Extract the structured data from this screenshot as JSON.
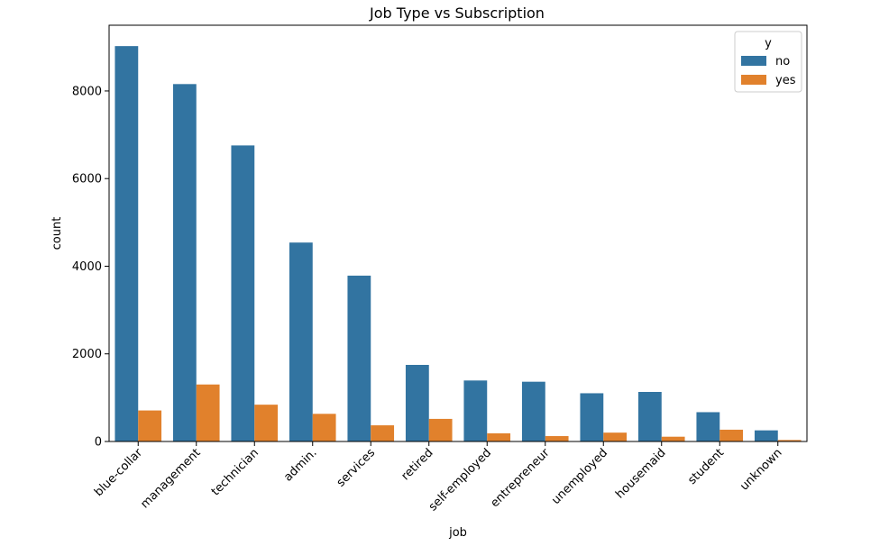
{
  "chart_data": {
    "type": "bar",
    "title": "Job Type vs Subscription",
    "xlabel": "job",
    "ylabel": "count",
    "ylim": [
      0,
      9500
    ],
    "yticks": [
      0,
      2000,
      4000,
      6000,
      8000
    ],
    "categories": [
      "blue-collar",
      "management",
      "technician",
      "admin.",
      "services",
      "retired",
      "self-employed",
      "entrepreneur",
      "unemployed",
      "housemaid",
      "student",
      "unknown"
    ],
    "legend": {
      "title": "y",
      "placement": "top-right"
    },
    "grid": false,
    "series": [
      {
        "name": "no",
        "color": "#3274a1",
        "values": [
          9024,
          8157,
          6757,
          4540,
          3785,
          1748,
          1392,
          1364,
          1101,
          1131,
          669,
          254
        ]
      },
      {
        "name": "yes",
        "color": "#e1812c",
        "values": [
          708,
          1301,
          840,
          631,
          369,
          516,
          187,
          123,
          202,
          109,
          269,
          34
        ]
      }
    ]
  }
}
